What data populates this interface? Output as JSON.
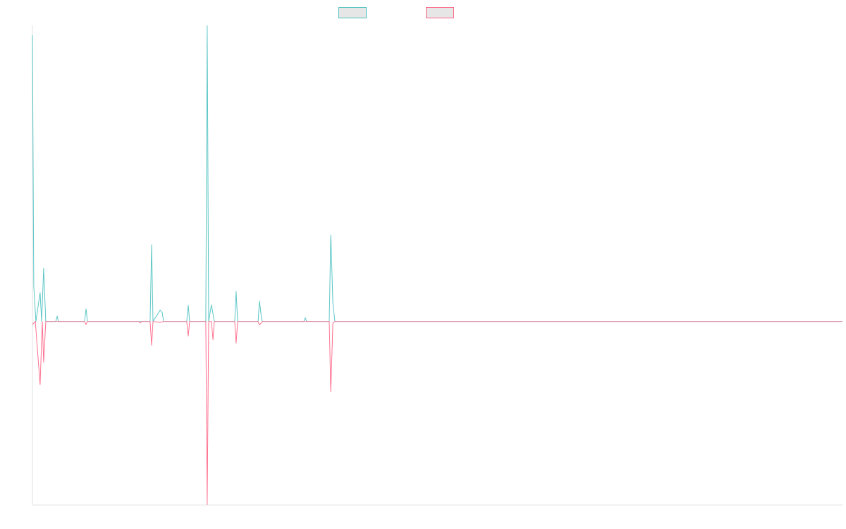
{
  "chart_data": {
    "type": "line",
    "title": "",
    "xlabel": "",
    "ylabel": "",
    "xlim": [
      0,
      420
    ],
    "ylim": [
      -62,
      100
    ],
    "grid": false,
    "legend_position": "top",
    "series": [
      {
        "name": "",
        "color": "#4bc0c0",
        "points": [
          [
            0,
            96.7
          ],
          [
            0.7,
            12
          ],
          [
            1.8,
            0
          ],
          [
            4.0,
            9.8
          ],
          [
            4.8,
            0
          ],
          [
            5.8,
            18
          ],
          [
            6.9,
            0
          ],
          [
            12.1,
            0
          ],
          [
            12.8,
            1.7
          ],
          [
            13.5,
            0
          ],
          [
            27.0,
            0
          ],
          [
            27.8,
            4.3
          ],
          [
            28.5,
            0
          ],
          [
            61.0,
            0
          ],
          [
            61.8,
            26
          ],
          [
            62.5,
            0
          ],
          [
            66.2,
            3.8
          ],
          [
            67.3,
            3
          ],
          [
            68.0,
            0
          ],
          [
            80.0,
            0
          ],
          [
            80.8,
            5.5
          ],
          [
            81.5,
            0
          ],
          [
            89.9,
            0
          ],
          [
            90.6,
            100
          ],
          [
            91.4,
            0
          ],
          [
            92.8,
            5.7
          ],
          [
            94.3,
            0
          ],
          [
            104.9,
            0
          ],
          [
            105.6,
            10.2
          ],
          [
            106.4,
            0
          ],
          [
            117.0,
            0
          ],
          [
            117.7,
            6.9
          ],
          [
            118.8,
            1
          ],
          [
            119.2,
            0
          ],
          [
            140.7,
            0
          ],
          [
            141.5,
            1.2
          ],
          [
            142.2,
            0
          ],
          [
            153.9,
            0
          ],
          [
            154.7,
            29.3
          ],
          [
            155.8,
            6.2
          ],
          [
            156.8,
            0
          ],
          [
            420,
            0
          ]
        ]
      },
      {
        "name": "",
        "color": "#ff6384",
        "points": [
          [
            0,
            -1
          ],
          [
            1.5,
            0
          ],
          [
            4.0,
            -21.4
          ],
          [
            5.1,
            0
          ],
          [
            5.8,
            -13.8
          ],
          [
            6.9,
            0
          ],
          [
            27.0,
            0
          ],
          [
            27.8,
            -1
          ],
          [
            28.5,
            0
          ],
          [
            55.2,
            0
          ],
          [
            55.9,
            -0.5
          ],
          [
            56.7,
            0
          ],
          [
            61.0,
            0
          ],
          [
            61.8,
            -8.1
          ],
          [
            62.5,
            0
          ],
          [
            66.2,
            -0.3
          ],
          [
            68.0,
            0
          ],
          [
            80.0,
            0
          ],
          [
            80.8,
            -5
          ],
          [
            81.5,
            0
          ],
          [
            89.9,
            0
          ],
          [
            90.6,
            -61.9
          ],
          [
            91.4,
            0
          ],
          [
            92.8,
            0
          ],
          [
            93.6,
            -6.2
          ],
          [
            94.3,
            0
          ],
          [
            104.9,
            0
          ],
          [
            105.6,
            -7.4
          ],
          [
            106.4,
            0
          ],
          [
            117.0,
            0
          ],
          [
            117.7,
            -1.2
          ],
          [
            119.2,
            0
          ],
          [
            153.9,
            0
          ],
          [
            154.7,
            -23.8
          ],
          [
            155.8,
            -0.5
          ],
          [
            156.8,
            0
          ],
          [
            420,
            0
          ]
        ]
      }
    ]
  }
}
